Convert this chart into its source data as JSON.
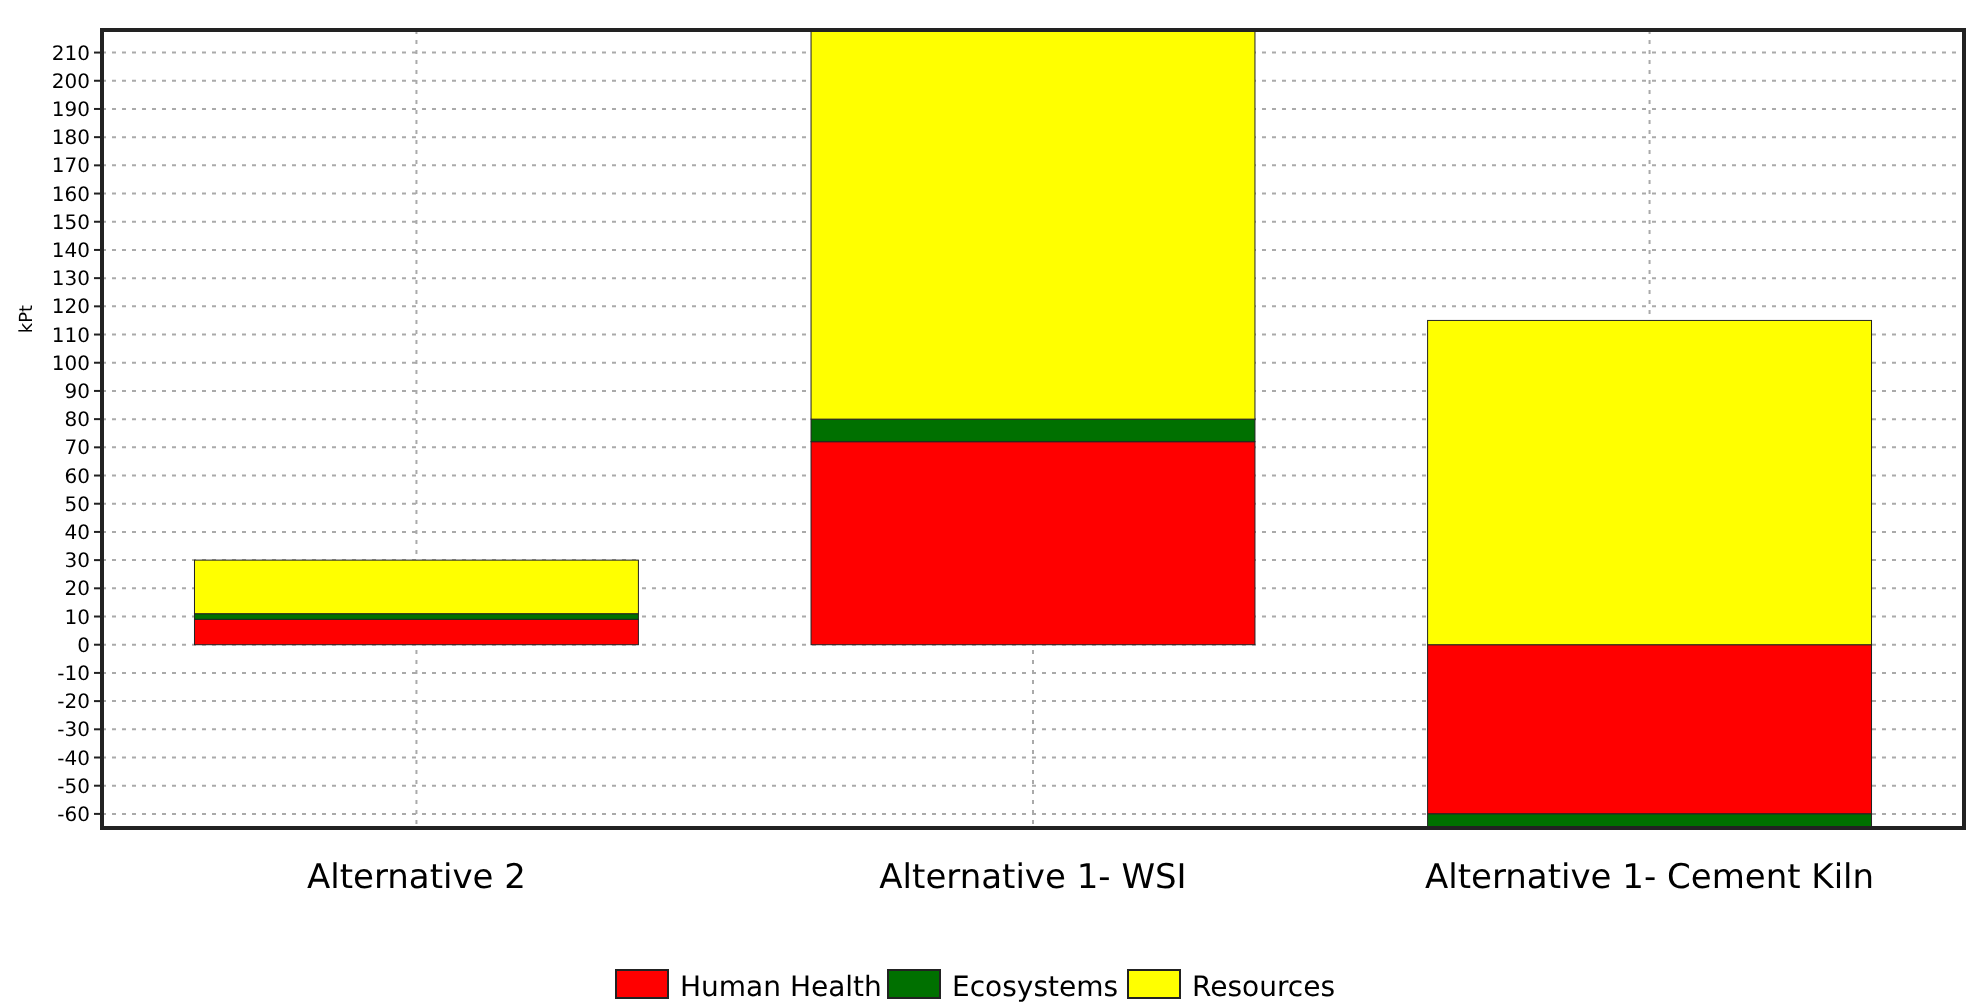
{
  "chart_data": {
    "type": "bar",
    "stacked": true,
    "ylabel": "kPt",
    "categories": [
      "Alternative 2",
      "Alternative 1- WSI",
      "Alternative 1- Cement Kiln"
    ],
    "series": [
      {
        "name": "Human Health",
        "color": "#ff0000",
        "values": [
          9,
          72,
          -60
        ]
      },
      {
        "name": "Ecosystems",
        "color": "#007000",
        "values": [
          2,
          8,
          -5
        ]
      },
      {
        "name": "Resources",
        "color": "#ffff00",
        "values": [
          19,
          138,
          115
        ]
      }
    ],
    "ylim": [
      -65,
      218
    ],
    "yticks": [
      -60,
      -50,
      -40,
      -30,
      -20,
      -10,
      0,
      10,
      20,
      30,
      40,
      50,
      60,
      70,
      80,
      90,
      100,
      110,
      120,
      130,
      140,
      150,
      160,
      170,
      180,
      190,
      200,
      210
    ],
    "grid": true,
    "legend": "bottom"
  }
}
